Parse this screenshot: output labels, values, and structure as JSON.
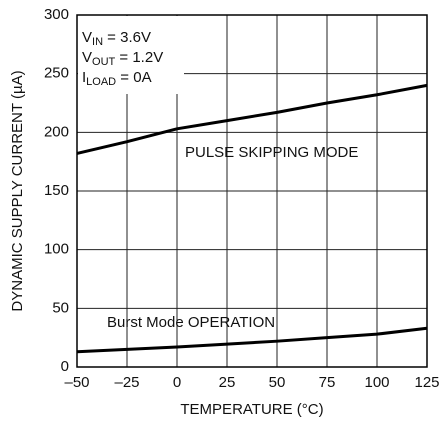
{
  "chart_data": {
    "type": "line",
    "x_label": "TEMPERATURE (°C)",
    "y_label": "DYNAMIC SUPPLY CURRENT (µA)",
    "annotation": [
      {
        "main": "V",
        "sub": "IN",
        "rest": " = 3.6V"
      },
      {
        "main": "V",
        "sub": "OUT",
        "rest": " = 1.2V"
      },
      {
        "main": "I",
        "sub": "LOAD",
        "rest": " = 0A"
      }
    ],
    "x": [
      -50,
      -25,
      0,
      25,
      50,
      75,
      100,
      125
    ],
    "series": [
      {
        "name": "PULSE SKIPPING MODE",
        "color": "#000000",
        "values": [
          182,
          192,
          203,
          210,
          217,
          225,
          232,
          240
        ]
      },
      {
        "name": "Burst Mode OPERATION",
        "color": "#000000",
        "values": [
          13,
          15,
          17,
          19.5,
          22,
          25,
          28,
          33
        ]
      }
    ],
    "xlim": [
      -50,
      125
    ],
    "xticks": [
      {
        "value": -50,
        "label": "–50"
      },
      {
        "value": -25,
        "label": "–25"
      },
      0,
      25,
      50,
      75,
      100,
      125
    ],
    "ylim": [
      0,
      300
    ],
    "yticks": [
      0,
      50,
      100,
      150,
      200,
      250,
      300
    ],
    "grid": true
  }
}
